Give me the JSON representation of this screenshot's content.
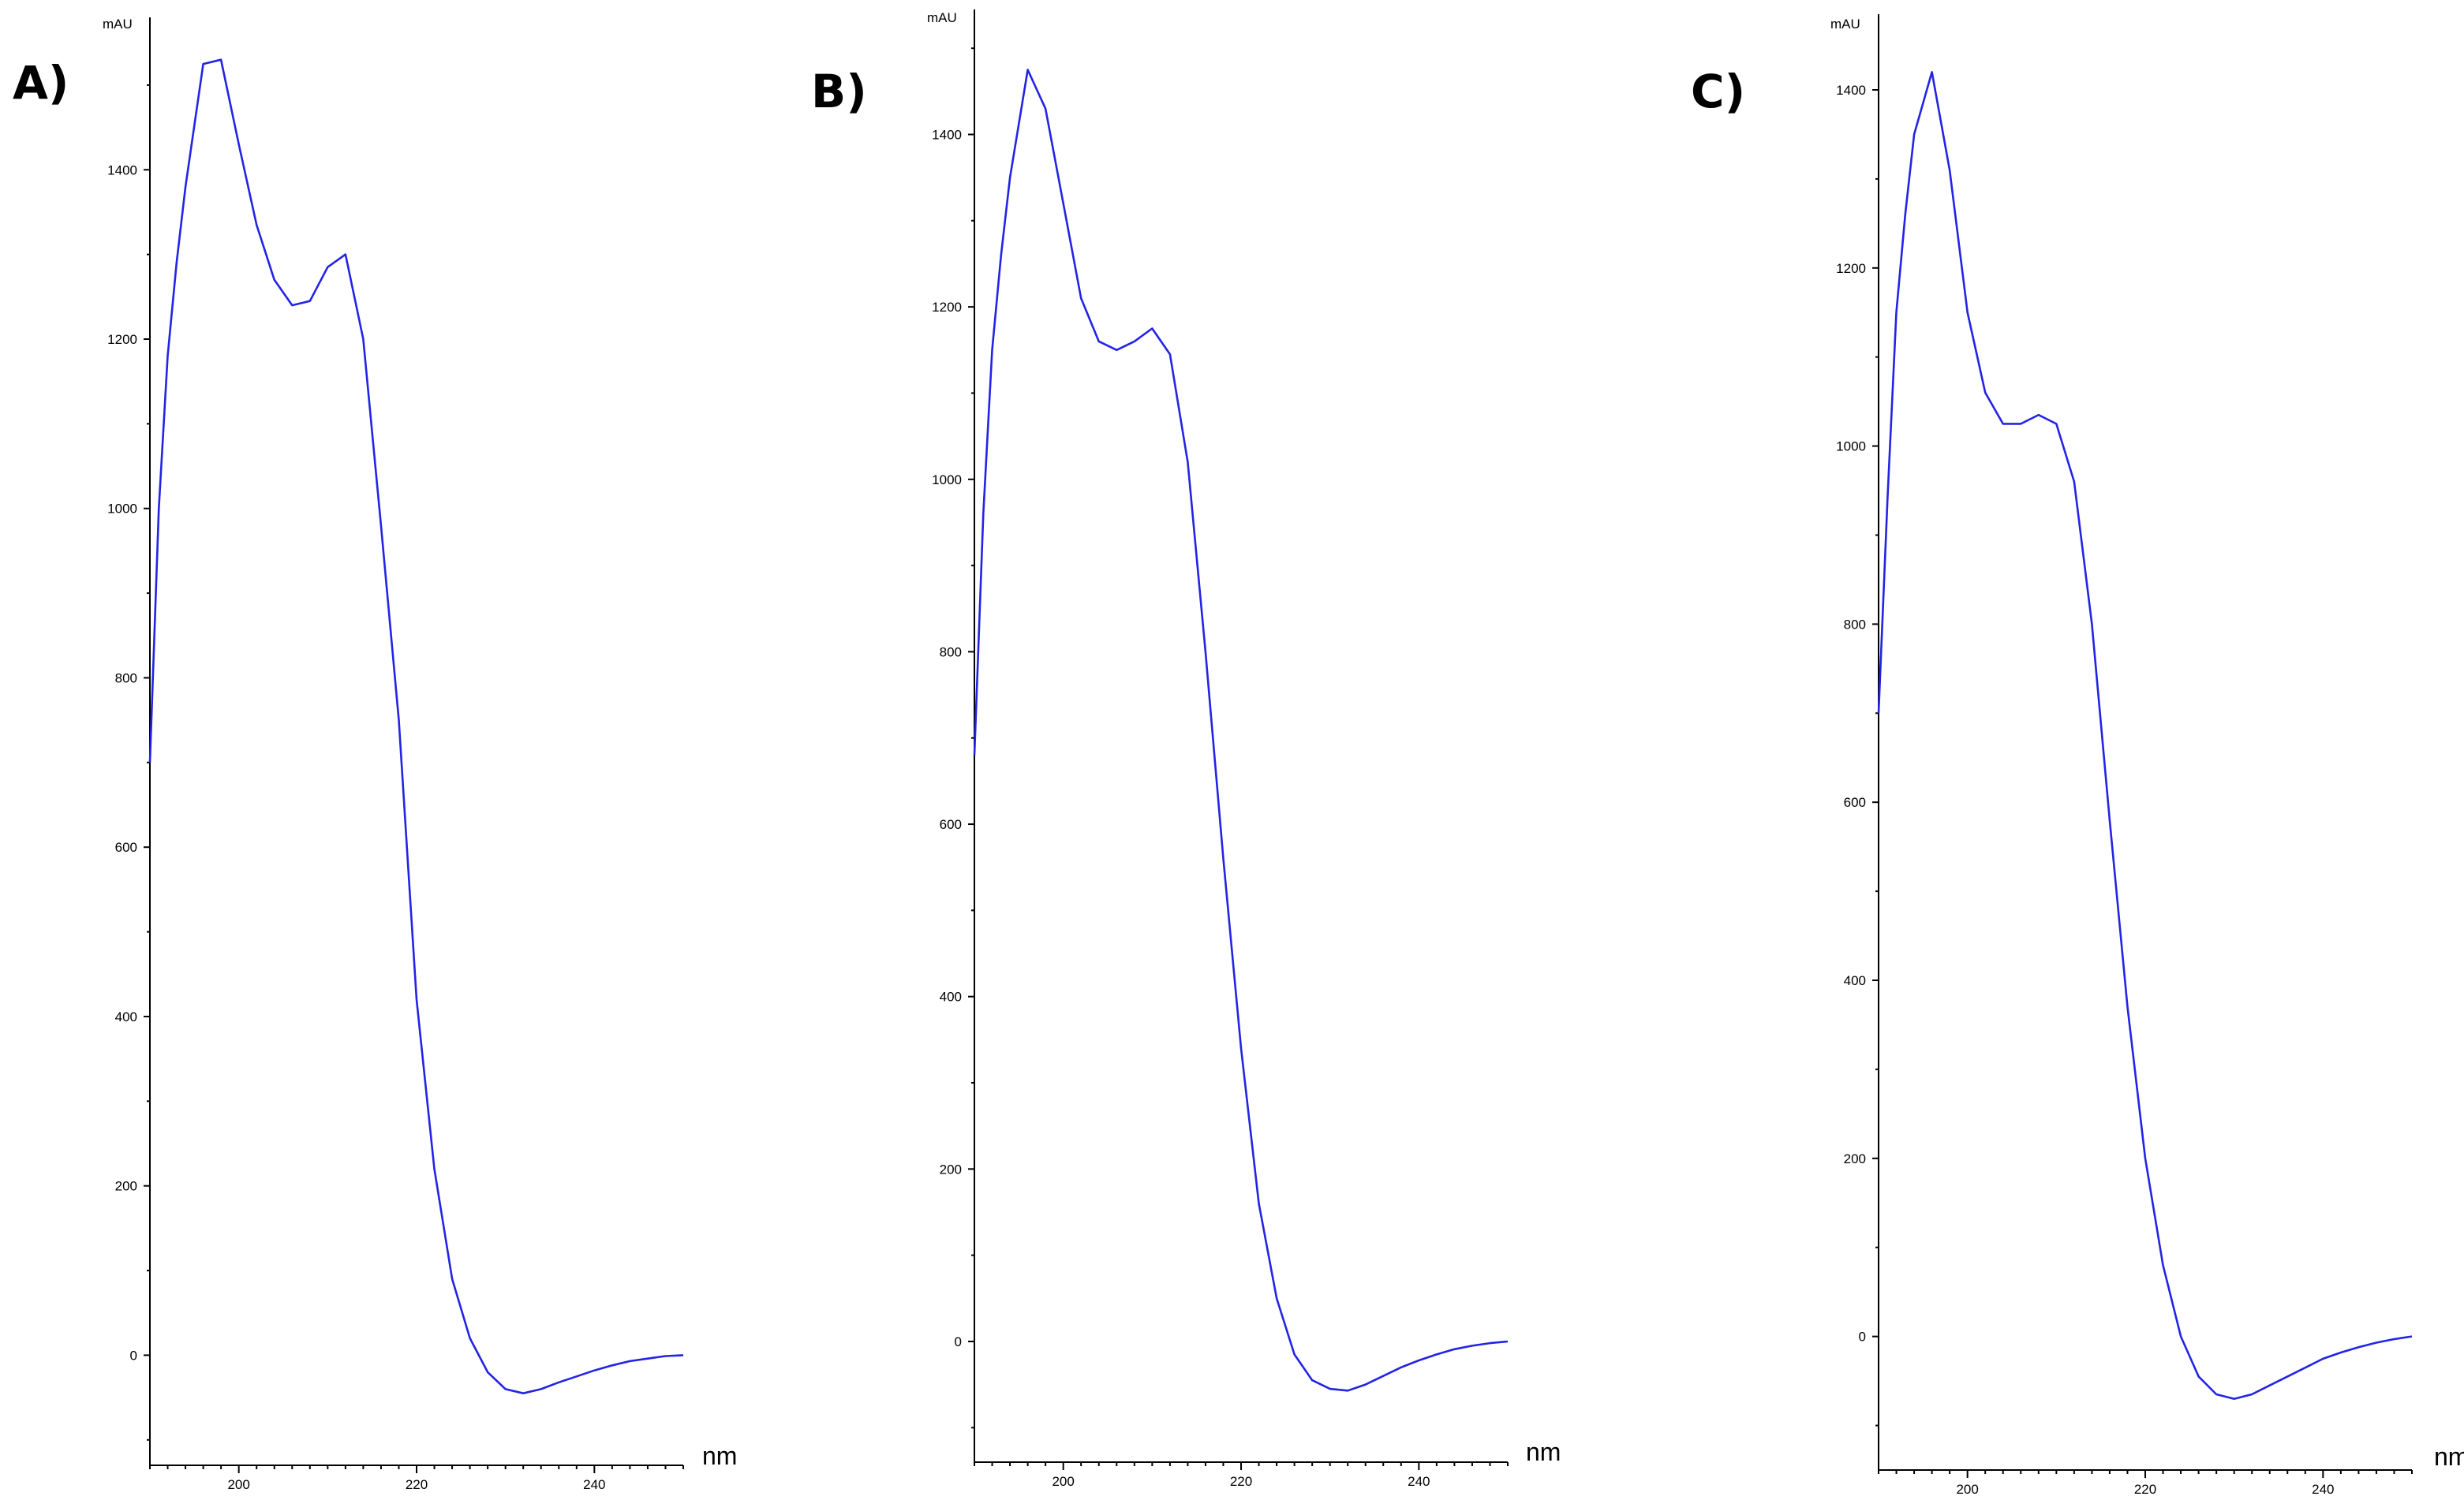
{
  "colors": {
    "series": "#2323e6",
    "axis": "#000000"
  },
  "chart_data": [
    {
      "type": "line",
      "panel_label": "A)",
      "ylabel": "mAU",
      "xlabel": "nm",
      "xlim": [
        190,
        250
      ],
      "ylim": [
        -130,
        1580
      ],
      "xticks": [
        200,
        220,
        240
      ],
      "xtick_labels": [
        "200",
        "220",
        "240"
      ],
      "yticks": [
        0,
        200,
        400,
        600,
        800,
        1000,
        1200,
        1400
      ],
      "ytick_labels": [
        "0",
        "200",
        "400",
        "600",
        "800",
        "1000",
        "1200",
        "1400"
      ],
      "grid": false,
      "x": [
        190,
        191,
        192,
        193,
        194,
        196,
        198,
        200,
        202,
        204,
        206,
        208,
        210,
        212,
        214,
        216,
        218,
        220,
        222,
        224,
        226,
        228,
        230,
        232,
        234,
        236,
        238,
        240,
        242,
        244,
        246,
        248,
        250
      ],
      "y": [
        700,
        1000,
        1180,
        1290,
        1380,
        1525,
        1530,
        1430,
        1335,
        1270,
        1240,
        1245,
        1285,
        1300,
        1200,
        980,
        750,
        420,
        220,
        90,
        20,
        -20,
        -40,
        -45,
        -40,
        -32,
        -25,
        -18,
        -12,
        -7,
        -4,
        -1,
        0
      ]
    },
    {
      "type": "line",
      "panel_label": "B)",
      "ylabel": "mAU",
      "xlabel": "nm",
      "xlim": [
        190,
        250
      ],
      "ylim": [
        -140,
        1545
      ],
      "xticks": [
        200,
        220,
        240
      ],
      "xtick_labels": [
        "200",
        "220",
        "240"
      ],
      "yticks": [
        0,
        200,
        400,
        600,
        800,
        1000,
        1200,
        1400
      ],
      "ytick_labels": [
        "0",
        "200",
        "400",
        "600",
        "800",
        "1000",
        "1200",
        "1400"
      ],
      "grid": false,
      "x": [
        190,
        191,
        192,
        193,
        194,
        196,
        198,
        200,
        202,
        204,
        206,
        208,
        210,
        212,
        214,
        216,
        218,
        220,
        222,
        224,
        226,
        228,
        230,
        232,
        234,
        236,
        238,
        240,
        242,
        244,
        246,
        248,
        250
      ],
      "y": [
        680,
        960,
        1150,
        1260,
        1350,
        1475,
        1430,
        1320,
        1210,
        1160,
        1150,
        1160,
        1175,
        1145,
        1020,
        800,
        560,
        340,
        160,
        50,
        -15,
        -45,
        -55,
        -57,
        -50,
        -40,
        -30,
        -22,
        -15,
        -9,
        -5,
        -2,
        0
      ]
    },
    {
      "type": "line",
      "panel_label": "C)",
      "ylabel": "mAU",
      "xlabel": "nm",
      "xlim": [
        190,
        250
      ],
      "ylim": [
        -150,
        1485
      ],
      "xticks": [
        200,
        220,
        240
      ],
      "xtick_labels": [
        "200",
        "220",
        "240"
      ],
      "yticks": [
        0,
        200,
        400,
        600,
        800,
        1000,
        1200,
        1400
      ],
      "ytick_labels": [
        "0",
        "200",
        "400",
        "600",
        "800",
        "1000",
        "1200",
        "1400"
      ],
      "grid": false,
      "x": [
        190,
        191,
        192,
        193,
        194,
        196,
        198,
        200,
        202,
        204,
        206,
        208,
        210,
        212,
        214,
        216,
        218,
        220,
        222,
        224,
        226,
        228,
        230,
        232,
        234,
        236,
        238,
        240,
        242,
        244,
        246,
        248,
        250
      ],
      "y": [
        700,
        940,
        1150,
        1260,
        1350,
        1420,
        1310,
        1150,
        1060,
        1025,
        1025,
        1035,
        1025,
        960,
        800,
        580,
        370,
        200,
        80,
        0,
        -45,
        -65,
        -70,
        -65,
        -55,
        -45,
        -35,
        -25,
        -18,
        -12,
        -7,
        -3,
        0
      ]
    }
  ]
}
